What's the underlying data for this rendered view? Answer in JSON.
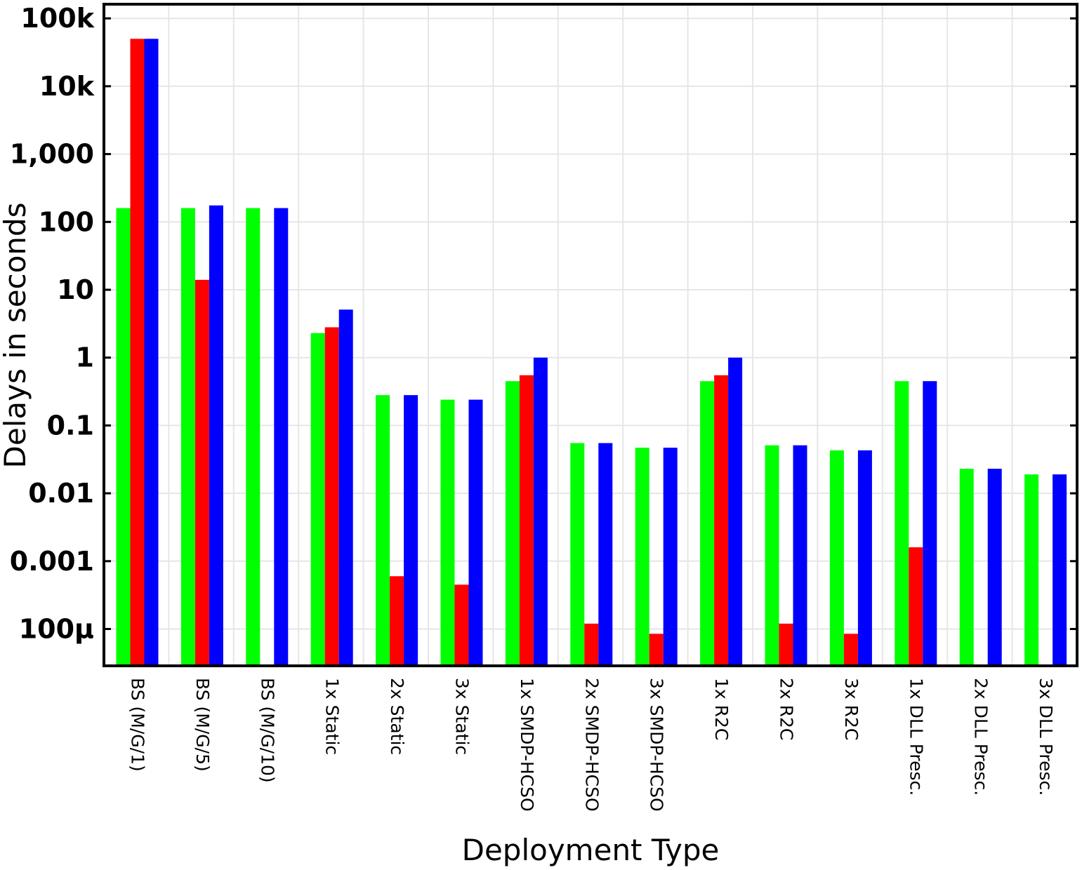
{
  "chart_data": {
    "type": "bar",
    "title": "",
    "xlabel": "Deployment Type",
    "ylabel": "Delays in seconds",
    "yscale": "log",
    "ylim": [
      3e-05,
      100000
    ],
    "grid": true,
    "legend": "none",
    "yticks": [
      {
        "value": 0.0001,
        "label": "100µ"
      },
      {
        "value": 0.001,
        "label": "0.001"
      },
      {
        "value": 0.01,
        "label": "0.01"
      },
      {
        "value": 0.1,
        "label": "0.1"
      },
      {
        "value": 1,
        "label": "1"
      },
      {
        "value": 10,
        "label": "10"
      },
      {
        "value": 100,
        "label": "100"
      },
      {
        "value": 1000,
        "label": "1,000"
      },
      {
        "value": 10000,
        "label": "10k"
      },
      {
        "value": 100000,
        "label": "100k"
      }
    ],
    "categories": [
      "BS (M/G/1)",
      "BS (M/G/5)",
      "BS (M/G/10)",
      "1x Static",
      "2x Static",
      "3x Static",
      "1x SMDP-HCSO",
      "2x SMDP-HCSO",
      "3x SMDP-HCSO",
      "1x R2C",
      "2x R2C",
      "3x R2C",
      "1x DLL Presc.",
      "2x DLL Presc.",
      "3x DLL Presc."
    ],
    "series": [
      {
        "color": "#00ff00",
        "values": [
          160,
          160,
          160,
          2.3,
          0.28,
          0.24,
          0.45,
          0.055,
          0.047,
          0.45,
          0.051,
          0.043,
          0.45,
          0.023,
          0.019
        ]
      },
      {
        "color": "#ff0000",
        "values": [
          50000,
          14,
          null,
          2.8,
          0.0006,
          0.00045,
          0.55,
          0.00012,
          8.5e-05,
          0.55,
          0.00012,
          8.5e-05,
          0.0016,
          null,
          null
        ]
      },
      {
        "color": "#0000ff",
        "values": [
          50000,
          175,
          160,
          5.1,
          0.28,
          0.24,
          1.0,
          0.055,
          0.047,
          1.0,
          0.051,
          0.043,
          0.45,
          0.023,
          0.019
        ]
      }
    ]
  }
}
